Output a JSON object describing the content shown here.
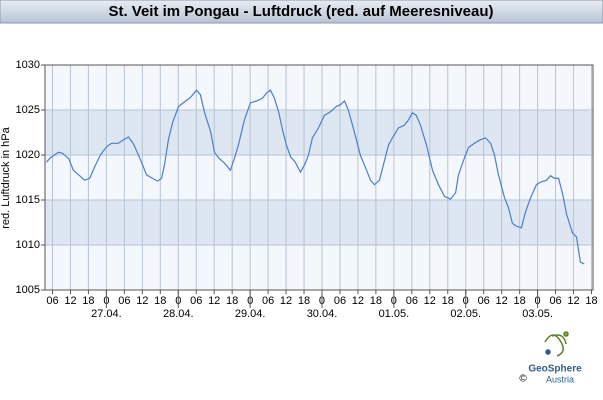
{
  "chart_data": {
    "type": "line",
    "title": "St. Veit im Pongau - Luftdruck (red. auf Meeresniveau)",
    "y_label": "red. Luftdruck in hPa",
    "x": [
      4,
      5.3,
      8,
      9.3,
      11.4,
      13,
      15.4,
      16.7,
      18.4,
      20.4,
      22,
      24,
      25.7,
      28,
      29.7,
      31.4,
      33.1,
      34.7,
      36.1,
      37.4,
      39.4,
      41.1,
      42.4,
      43.4,
      44.7,
      46.1,
      48.1,
      50.1,
      52.1,
      54.1,
      55.4,
      56.8,
      58.8,
      60.1,
      61.4,
      63.4,
      65.4,
      66.8,
      68.1,
      70.1,
      72.1,
      74.1,
      76.1,
      77.5,
      78.8,
      80.1,
      81.5,
      82.8,
      84.1,
      85.5,
      87.1,
      88.8,
      90.2,
      91.5,
      92.8,
      94.8,
      96.8,
      98.8,
      100.8,
      102.2,
      103.5,
      104.8,
      106.2,
      107.5,
      108.8,
      110.9,
      112.2,
      113.5,
      115.2,
      116.5,
      118.2,
      119.5,
      121.5,
      123.5,
      124.9,
      126.2,
      127.5,
      128.9,
      130.9,
      132.9,
      134.9,
      136.9,
      138.9,
      140.6,
      141.6,
      143.6,
      144.9,
      146.9,
      148.9,
      150.6,
      152.3,
      153.6,
      154.9,
      156.9,
      158.3,
      159.6,
      160.9,
      162.6,
      163.9,
      165.6,
      167.6,
      169,
      171,
      172.3,
      173.6,
      175,
      176.4,
      177.7,
      179.7,
      181,
      182.3,
      183.6
    ],
    "series": [
      {
        "name": "Luftdruck",
        "color": "#4a7fd0",
        "values": [
          1019.2,
          1019.7,
          1020.3,
          1020.2,
          1019.6,
          1018.3,
          1017.6,
          1017.2,
          1017.4,
          1018.9,
          1020.0,
          1020.9,
          1021.3,
          1021.3,
          1021.7,
          1022.0,
          1021.2,
          1020.0,
          1018.9,
          1017.8,
          1017.4,
          1017.1,
          1017.4,
          1018.9,
          1021.7,
          1023.6,
          1025.4,
          1025.9,
          1026.4,
          1027.2,
          1026.7,
          1024.7,
          1022.6,
          1020.3,
          1019.7,
          1019.1,
          1018.3,
          1019.7,
          1021.1,
          1023.9,
          1025.8,
          1026.0,
          1026.3,
          1026.9,
          1027.2,
          1026.3,
          1024.8,
          1022.8,
          1021.1,
          1019.8,
          1019.2,
          1018.1,
          1018.9,
          1020.0,
          1021.9,
          1023.0,
          1024.4,
          1024.8,
          1025.4,
          1025.6,
          1026.0,
          1025.0,
          1023.3,
          1021.7,
          1020.0,
          1018.3,
          1017.2,
          1016.7,
          1017.2,
          1018.9,
          1021.1,
          1021.9,
          1023.0,
          1023.3,
          1023.9,
          1024.7,
          1024.4,
          1023.3,
          1021.1,
          1018.3,
          1016.7,
          1015.4,
          1015.1,
          1015.8,
          1017.8,
          1019.7,
          1020.8,
          1021.3,
          1021.7,
          1021.9,
          1021.3,
          1020.0,
          1017.8,
          1015.3,
          1014.1,
          1012.4,
          1012.1,
          1011.9,
          1013.6,
          1015.2,
          1016.7,
          1017.0,
          1017.2,
          1017.7,
          1017.4,
          1017.4,
          1015.6,
          1013.4,
          1011.3,
          1010.9,
          1008.1,
          1007.9
        ]
      }
    ],
    "xlim": [
      3.5,
      186.5
    ],
    "xticks": [
      {
        "value": 6,
        "label": "06"
      },
      {
        "value": 12,
        "label": "12"
      },
      {
        "value": 18,
        "label": "18"
      },
      {
        "value": 24,
        "label": "0"
      },
      {
        "value": 30,
        "label": "06"
      },
      {
        "value": 36,
        "label": "12"
      },
      {
        "value": 42,
        "label": "18"
      },
      {
        "value": 48,
        "label": "0"
      },
      {
        "value": 54,
        "label": "06"
      },
      {
        "value": 60,
        "label": "12"
      },
      {
        "value": 66,
        "label": "18"
      },
      {
        "value": 72,
        "label": "0"
      },
      {
        "value": 78,
        "label": "06"
      },
      {
        "value": 84,
        "label": "12"
      },
      {
        "value": 90,
        "label": "18"
      },
      {
        "value": 96,
        "label": "0"
      },
      {
        "value": 102,
        "label": "06"
      },
      {
        "value": 108,
        "label": "12"
      },
      {
        "value": 114,
        "label": "18"
      },
      {
        "value": 120,
        "label": "0"
      },
      {
        "value": 126,
        "label": "06"
      },
      {
        "value": 132,
        "label": "12"
      },
      {
        "value": 138,
        "label": "18"
      },
      {
        "value": 144,
        "label": "0"
      },
      {
        "value": 150,
        "label": "06"
      },
      {
        "value": 156,
        "label": "12"
      },
      {
        "value": 162,
        "label": "18"
      },
      {
        "value": 168,
        "label": "0"
      },
      {
        "value": 174,
        "label": "06"
      },
      {
        "value": 180,
        "label": "12"
      },
      {
        "value": 186,
        "label": "18"
      }
    ],
    "date_ticks": [
      {
        "value": 24,
        "label": "27.04."
      },
      {
        "value": 48,
        "label": "28.04."
      },
      {
        "value": 72,
        "label": "29.04."
      },
      {
        "value": 96,
        "label": "30.04."
      },
      {
        "value": 120,
        "label": "01.05."
      },
      {
        "value": 144,
        "label": "02.05."
      },
      {
        "value": 168,
        "label": "03.05."
      }
    ],
    "ylim": [
      1005,
      1030
    ],
    "yticks": [
      1005,
      1010,
      1015,
      1020,
      1025,
      1030
    ],
    "bands": [
      [
        1010,
        1015
      ],
      [
        1020,
        1025
      ]
    ],
    "band_color": "#dde6f1",
    "grid": true,
    "logo": {
      "name": "GeoSphere",
      "sub": "Austria",
      "copyright": "©"
    }
  }
}
